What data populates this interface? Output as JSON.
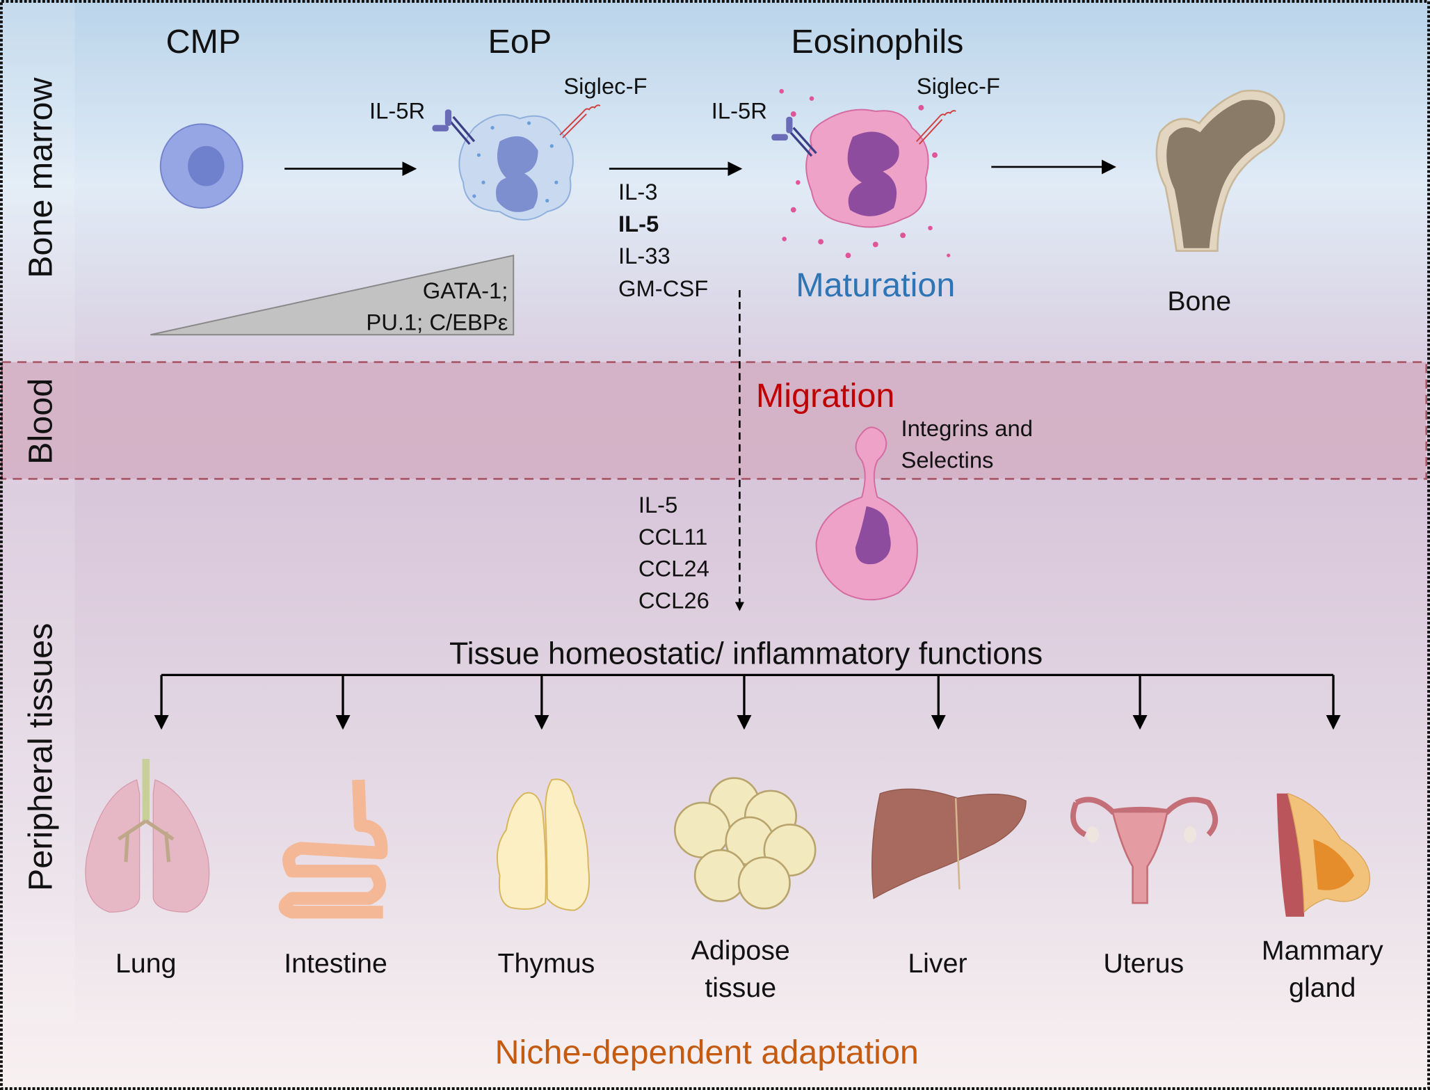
{
  "regions": {
    "bone_marrow": "Bone marrow",
    "blood": "Blood",
    "peripheral": "Peripheral tissues"
  },
  "stages": {
    "cmp": "CMP",
    "eop": "EoP",
    "eosinophils": "Eosinophils"
  },
  "receptors": {
    "il5r": "IL-5R",
    "siglecf": "Siglec-F"
  },
  "transcription_factors": [
    "GATA-1;",
    "PU.1; C/EBPε"
  ],
  "maturation_cytokines": [
    "IL-3",
    "IL-5",
    "IL-33",
    "GM-CSF"
  ],
  "maturation": "Maturation",
  "bone": "Bone",
  "migration": "Migration",
  "adhesion": [
    "Integrins and",
    "Selectins"
  ],
  "chemokines": [
    "IL-5",
    "CCL11",
    "CCL24",
    "CCL26"
  ],
  "functions_title": "Tissue homeostatic/ inflammatory functions",
  "tissues": [
    {
      "lines": [
        "Lung"
      ]
    },
    {
      "lines": [
        "Intestine"
      ]
    },
    {
      "lines": [
        "Thymus"
      ]
    },
    {
      "lines": [
        "Adipose",
        "tissue"
      ]
    },
    {
      "lines": [
        "Liver"
      ]
    },
    {
      "lines": [
        "Uterus"
      ]
    },
    {
      "lines": [
        "Mammary",
        "gland"
      ]
    }
  ],
  "footer": "Niche-dependent adaptation",
  "colors": {
    "maturation": "#2e75b6",
    "migration": "#c00000",
    "footer": "#c55a11",
    "blood_band": "#d4afc4"
  }
}
